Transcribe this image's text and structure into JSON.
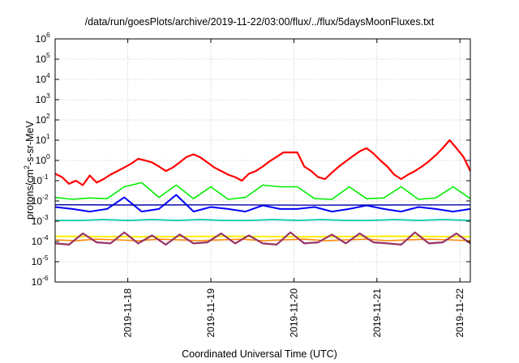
{
  "chart_data": {
    "type": "line",
    "title": "/data/run/goesPlots/archive/2019-11-22/03:00/flux/../flux/5daysMoonFluxes.txt",
    "xlabel": "Coordinated Universal Time (UTC)",
    "ylabel": {
      "pre": "protons/cm",
      "sup": "2",
      "post": "-s-sr-MeV"
    },
    "yscale": "log",
    "ylim": [
      1e-06,
      1000000.0
    ],
    "xlim": [
      "2019-11-17 03:00",
      "2019-11-22 03:00"
    ],
    "grid": true,
    "xticks": [
      "2019-11-18",
      "2019-11-19",
      "2019-11-20",
      "2019-11-21",
      "2019-11-22"
    ],
    "yticks": [
      {
        "base": "10",
        "exp": "-6"
      },
      {
        "base": "10",
        "exp": "-5"
      },
      {
        "base": "10",
        "exp": "-4"
      },
      {
        "base": "10",
        "exp": "-3"
      },
      {
        "base": "10",
        "exp": "-2"
      },
      {
        "base": "10",
        "exp": "-1"
      },
      {
        "base": "10",
        "exp": "0"
      },
      {
        "base": "10",
        "exp": "1"
      },
      {
        "base": "10",
        "exp": "2"
      },
      {
        "base": "10",
        "exp": "3"
      },
      {
        "base": "10",
        "exp": "4"
      },
      {
        "base": "10",
        "exp": "5"
      },
      {
        "base": "10",
        "exp": "6"
      }
    ],
    "series": [
      {
        "color": "#ff0000",
        "width": 2.2,
        "x": [
          "2019-11-17 03:00",
          "2019-11-17 05:00",
          "2019-11-17 07:00",
          "2019-11-17 09:00",
          "2019-11-17 11:00",
          "2019-11-17 13:00",
          "2019-11-17 15:00",
          "2019-11-17 17:00",
          "2019-11-17 19:00",
          "2019-11-17 21:00",
          "2019-11-17 23:00",
          "2019-11-18 01:00",
          "2019-11-18 03:00",
          "2019-11-18 05:00",
          "2019-11-18 07:00",
          "2019-11-18 09:00",
          "2019-11-18 11:00",
          "2019-11-18 13:00",
          "2019-11-18 15:00",
          "2019-11-18 17:00",
          "2019-11-18 19:00",
          "2019-11-18 21:00",
          "2019-11-18 23:00",
          "2019-11-19 01:00",
          "2019-11-19 03:00",
          "2019-11-19 05:00",
          "2019-11-19 07:00",
          "2019-11-19 09:00",
          "2019-11-19 11:00",
          "2019-11-19 13:00",
          "2019-11-19 15:00",
          "2019-11-19 17:00",
          "2019-11-19 19:00",
          "2019-11-19 21:00",
          "2019-11-19 23:00",
          "2019-11-20 01:00",
          "2019-11-20 03:00",
          "2019-11-20 05:00",
          "2019-11-20 07:00",
          "2019-11-20 09:00",
          "2019-11-20 11:00",
          "2019-11-20 13:00",
          "2019-11-20 15:00",
          "2019-11-20 17:00",
          "2019-11-20 19:00",
          "2019-11-20 21:00",
          "2019-11-20 23:00",
          "2019-11-21 01:00",
          "2019-11-21 03:00",
          "2019-11-21 05:00",
          "2019-11-21 07:00",
          "2019-11-21 09:00",
          "2019-11-21 11:00",
          "2019-11-21 13:00",
          "2019-11-21 15:00",
          "2019-11-21 17:00",
          "2019-11-21 19:00",
          "2019-11-21 21:00",
          "2019-11-21 23:00",
          "2019-11-22 01:00",
          "2019-11-22 03:00"
        ],
        "y": [
          0.22,
          0.15,
          0.07,
          0.1,
          0.06,
          0.18,
          0.08,
          0.12,
          0.2,
          0.3,
          0.45,
          0.7,
          1.2,
          1.0,
          0.8,
          0.5,
          0.3,
          0.45,
          0.8,
          1.5,
          2.0,
          1.4,
          0.8,
          0.45,
          0.3,
          0.2,
          0.15,
          0.1,
          0.22,
          0.3,
          0.5,
          0.9,
          1.5,
          2.5,
          2.5,
          2.5,
          0.5,
          0.3,
          0.15,
          0.12,
          0.25,
          0.5,
          0.9,
          1.6,
          2.8,
          4.0,
          2.2,
          1.0,
          0.5,
          0.2,
          0.12,
          0.2,
          0.3,
          0.5,
          0.9,
          1.8,
          4.0,
          10,
          4.0,
          1.5,
          0.3
        ]
      },
      {
        "color": "#00ee00",
        "width": 1.6,
        "x": [
          "2019-11-17 03:00",
          "2019-11-17 08:00",
          "2019-11-17 13:00",
          "2019-11-17 18:00",
          "2019-11-17 23:00",
          "2019-11-18 04:00",
          "2019-11-18 09:00",
          "2019-11-18 14:00",
          "2019-11-18 19:00",
          "2019-11-19 00:00",
          "2019-11-19 05:00",
          "2019-11-19 10:00",
          "2019-11-19 15:00",
          "2019-11-19 20:00",
          "2019-11-20 01:00",
          "2019-11-20 06:00",
          "2019-11-20 11:00",
          "2019-11-20 16:00",
          "2019-11-20 21:00",
          "2019-11-21 02:00",
          "2019-11-21 07:00",
          "2019-11-21 12:00",
          "2019-11-21 17:00",
          "2019-11-21 22:00",
          "2019-11-22 03:00"
        ],
        "y": [
          0.015,
          0.012,
          0.014,
          0.013,
          0.05,
          0.08,
          0.015,
          0.06,
          0.013,
          0.05,
          0.012,
          0.015,
          0.06,
          0.05,
          0.05,
          0.013,
          0.012,
          0.05,
          0.013,
          0.014,
          0.05,
          0.012,
          0.014,
          0.05,
          0.013
        ]
      },
      {
        "color": "#0000ff",
        "width": 2.0,
        "x": [
          "2019-11-17 03:00",
          "2019-11-17 08:00",
          "2019-11-17 13:00",
          "2019-11-17 18:00",
          "2019-11-17 23:00",
          "2019-11-18 04:00",
          "2019-11-18 09:00",
          "2019-11-18 14:00",
          "2019-11-18 19:00",
          "2019-11-19 00:00",
          "2019-11-19 05:00",
          "2019-11-19 10:00",
          "2019-11-19 15:00",
          "2019-11-19 20:00",
          "2019-11-20 01:00",
          "2019-11-20 06:00",
          "2019-11-20 11:00",
          "2019-11-20 16:00",
          "2019-11-20 21:00",
          "2019-11-21 02:00",
          "2019-11-21 07:00",
          "2019-11-21 12:00",
          "2019-11-21 17:00",
          "2019-11-21 22:00",
          "2019-11-22 03:00"
        ],
        "y": [
          0.005,
          0.004,
          0.003,
          0.004,
          0.015,
          0.003,
          0.004,
          0.02,
          0.003,
          0.005,
          0.004,
          0.003,
          0.006,
          0.004,
          0.004,
          0.005,
          0.003,
          0.004,
          0.006,
          0.004,
          0.003,
          0.005,
          0.004,
          0.003,
          0.004
        ]
      },
      {
        "color": "#0000aa",
        "width": 1.4,
        "x": [
          "2019-11-17 03:00",
          "2019-11-18 03:00",
          "2019-11-19 03:00",
          "2019-11-20 03:00",
          "2019-11-21 03:00",
          "2019-11-22 03:00"
        ],
        "y": [
          0.0065,
          0.0063,
          0.0064,
          0.0062,
          0.0063,
          0.0064
        ]
      },
      {
        "color": "#00ccaa",
        "width": 1.8,
        "x": [
          "2019-11-17 03:00",
          "2019-11-17 10:00",
          "2019-11-17 17:00",
          "2019-11-18 00:00",
          "2019-11-18 07:00",
          "2019-11-18 14:00",
          "2019-11-18 21:00",
          "2019-11-19 04:00",
          "2019-11-19 11:00",
          "2019-11-19 18:00",
          "2019-11-20 01:00",
          "2019-11-20 08:00",
          "2019-11-20 15:00",
          "2019-11-20 22:00",
          "2019-11-21 05:00",
          "2019-11-21 12:00",
          "2019-11-21 19:00",
          "2019-11-22 03:00"
        ],
        "y": [
          0.0011,
          0.0011,
          0.0012,
          0.0011,
          0.0012,
          0.0011,
          0.0012,
          0.0011,
          0.0011,
          0.0012,
          0.0011,
          0.0012,
          0.0011,
          0.0011,
          0.0012,
          0.0011,
          0.0012,
          0.0011
        ]
      },
      {
        "color": "#ffee00",
        "width": 2.0,
        "x": [
          "2019-11-17 03:00",
          "2019-11-18 03:00",
          "2019-11-19 03:00",
          "2019-11-20 03:00",
          "2019-11-21 03:00",
          "2019-11-22 03:00"
        ],
        "y": [
          0.00018,
          0.00017,
          0.00018,
          0.00017,
          0.00018,
          0.00017
        ]
      },
      {
        "color": "#ff8800",
        "width": 1.6,
        "x": [
          "2019-11-17 03:00",
          "2019-11-17 09:00",
          "2019-11-17 15:00",
          "2019-11-17 21:00",
          "2019-11-18 03:00",
          "2019-11-18 09:00",
          "2019-11-18 15:00",
          "2019-11-18 21:00",
          "2019-11-19 03:00",
          "2019-11-19 09:00",
          "2019-11-19 15:00",
          "2019-11-19 21:00",
          "2019-11-20 03:00",
          "2019-11-20 09:00",
          "2019-11-20 15:00",
          "2019-11-20 21:00",
          "2019-11-21 03:00",
          "2019-11-21 09:00",
          "2019-11-21 15:00",
          "2019-11-21 21:00",
          "2019-11-22 03:00"
        ],
        "y": [
          0.00012,
          0.00011,
          0.00013,
          0.00012,
          0.00011,
          0.00013,
          0.00012,
          0.00011,
          0.00012,
          0.00013,
          0.00011,
          0.00012,
          0.00013,
          0.00011,
          0.00012,
          0.00013,
          0.00011,
          0.00012,
          0.00013,
          0.00012,
          0.00011
        ]
      },
      {
        "color": "#993366",
        "width": 2.2,
        "x": [
          "2019-11-17 03:00",
          "2019-11-17 07:00",
          "2019-11-17 11:00",
          "2019-11-17 15:00",
          "2019-11-17 19:00",
          "2019-11-17 23:00",
          "2019-11-18 03:00",
          "2019-11-18 07:00",
          "2019-11-18 11:00",
          "2019-11-18 15:00",
          "2019-11-18 19:00",
          "2019-11-18 23:00",
          "2019-11-19 03:00",
          "2019-11-19 07:00",
          "2019-11-19 11:00",
          "2019-11-19 15:00",
          "2019-11-19 19:00",
          "2019-11-19 23:00",
          "2019-11-20 03:00",
          "2019-11-20 07:00",
          "2019-11-20 11:00",
          "2019-11-20 15:00",
          "2019-11-20 19:00",
          "2019-11-20 23:00",
          "2019-11-21 03:00",
          "2019-11-21 07:00",
          "2019-11-21 11:00",
          "2019-11-21 15:00",
          "2019-11-21 19:00",
          "2019-11-21 23:00",
          "2019-11-22 03:00"
        ],
        "y": [
          8e-05,
          7e-05,
          0.00025,
          9e-05,
          8e-05,
          0.00028,
          8e-05,
          0.0002,
          7e-05,
          0.00022,
          8e-05,
          9e-05,
          0.00025,
          8e-05,
          0.0002,
          8e-05,
          7e-05,
          0.00028,
          8e-05,
          9e-05,
          0.00022,
          8e-05,
          0.00025,
          9e-05,
          8e-05,
          7e-05,
          0.00028,
          8e-05,
          9e-05,
          0.00025,
          8e-05
        ]
      }
    ]
  }
}
